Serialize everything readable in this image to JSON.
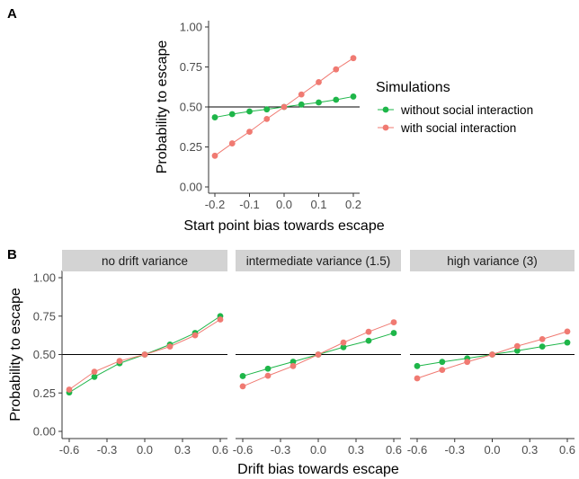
{
  "panel_tags": [
    "A",
    "B"
  ],
  "colors": {
    "without": "#1EB649",
    "with": "#F07A72",
    "strip_bg": "#D3D3D3",
    "axis": "#333333",
    "reference": "#000000"
  },
  "legend": {
    "title": "Simulations",
    "items": [
      {
        "label": "without social interaction",
        "color": "#1EB649"
      },
      {
        "label": "with social interaction",
        "color": "#F07A72"
      }
    ]
  },
  "chart_data": [
    {
      "id": "A",
      "type": "line",
      "xlabel": "Start point bias towards escape",
      "ylabel": "Probability to escape",
      "xlim": [
        -0.2,
        0.2
      ],
      "ylim": [
        0,
        1
      ],
      "xticks": [
        -0.2,
        -0.1,
        0.0,
        0.1,
        0.2
      ],
      "xtick_labels": [
        "-0.2",
        "-0.1",
        "0.0",
        "0.1",
        "0.2"
      ],
      "yticks": [
        0,
        0.25,
        0.5,
        0.75,
        1.0
      ],
      "ytick_labels": [
        "0.00",
        "0.25",
        "0.50",
        "0.75",
        "1.00"
      ],
      "reference_y": 0.5,
      "x": [
        -0.2,
        -0.15,
        -0.1,
        -0.05,
        0.0,
        0.05,
        0.1,
        0.15,
        0.2
      ],
      "series": [
        {
          "name": "without social interaction",
          "values": [
            0.435,
            0.455,
            0.472,
            0.485,
            0.5,
            0.515,
            0.528,
            0.545,
            0.565
          ]
        },
        {
          "name": "with social interaction",
          "values": [
            0.195,
            0.272,
            0.345,
            0.425,
            0.5,
            0.578,
            0.655,
            0.735,
            0.805
          ]
        }
      ]
    },
    {
      "id": "B",
      "type": "line",
      "xlabel": "Drift bias towards escape",
      "ylabel": "Probability to escape",
      "xlim": [
        -0.6,
        0.6
      ],
      "ylim": [
        0,
        1
      ],
      "xticks": [
        -0.6,
        -0.3,
        0.0,
        0.3,
        0.6
      ],
      "xtick_labels": [
        "-0.6",
        "-0.3",
        "0.0",
        "0.3",
        "0.6"
      ],
      "yticks": [
        0,
        0.25,
        0.5,
        0.75,
        1.0
      ],
      "ytick_labels": [
        "0.00",
        "0.25",
        "0.50",
        "0.75",
        "1.00"
      ],
      "reference_y": 0.5,
      "x": [
        -0.6,
        -0.4,
        -0.2,
        0.0,
        0.2,
        0.4,
        0.6
      ],
      "facets": [
        {
          "label": "no drift variance",
          "series": [
            {
              "name": "without social interaction",
              "values": [
                0.253,
                0.355,
                0.443,
                0.5,
                0.565,
                0.64,
                0.75
              ]
            },
            {
              "name": "with social interaction",
              "values": [
                0.272,
                0.388,
                0.458,
                0.5,
                0.552,
                0.625,
                0.728
              ]
            }
          ]
        },
        {
          "label": "intermediate variance (1.5)",
          "series": [
            {
              "name": "without social interaction",
              "values": [
                0.36,
                0.408,
                0.453,
                0.5,
                0.548,
                0.59,
                0.64
              ]
            },
            {
              "name": "with social interaction",
              "values": [
                0.293,
                0.362,
                0.425,
                0.5,
                0.578,
                0.648,
                0.71
              ]
            }
          ]
        },
        {
          "label": "high variance (3)",
          "series": [
            {
              "name": "without social interaction",
              "values": [
                0.425,
                0.452,
                0.475,
                0.5,
                0.525,
                0.552,
                0.578
              ]
            },
            {
              "name": "with social interaction",
              "values": [
                0.345,
                0.4,
                0.452,
                0.5,
                0.555,
                0.6,
                0.65
              ]
            }
          ]
        }
      ]
    }
  ]
}
